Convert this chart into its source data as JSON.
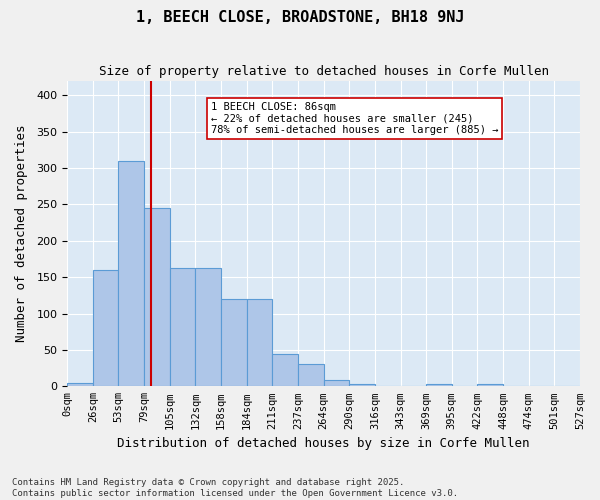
{
  "title": "1, BEECH CLOSE, BROADSTONE, BH18 9NJ",
  "subtitle": "Size of property relative to detached houses in Corfe Mullen",
  "xlabel": "Distribution of detached houses by size in Corfe Mullen",
  "ylabel": "Number of detached properties",
  "bin_labels": [
    "0sqm",
    "26sqm",
    "53sqm",
    "79sqm",
    "105sqm",
    "132sqm",
    "158sqm",
    "184sqm",
    "211sqm",
    "237sqm",
    "264sqm",
    "290sqm",
    "316sqm",
    "343sqm",
    "369sqm",
    "395sqm",
    "422sqm",
    "448sqm",
    "474sqm",
    "501sqm",
    "527sqm"
  ],
  "bar_values": [
    5,
    160,
    310,
    245,
    163,
    163,
    120,
    120,
    45,
    30,
    8,
    3,
    0,
    0,
    3,
    0,
    3,
    0,
    0,
    0
  ],
  "bar_color": "#aec6e8",
  "bar_edge_color": "#5b9bd5",
  "background_color": "#dce9f5",
  "grid_color": "#ffffff",
  "property_line_color": "#cc0000",
  "annotation_text": "1 BEECH CLOSE: 86sqm\n← 22% of detached houses are smaller (245)\n78% of semi-detached houses are larger (885) →",
  "annotation_box_color": "#ffffff",
  "annotation_box_edge": "#cc0000",
  "footnote": "Contains HM Land Registry data © Crown copyright and database right 2025.\nContains public sector information licensed under the Open Government Licence v3.0.",
  "ylim": [
    0,
    420
  ],
  "yticks": [
    0,
    50,
    100,
    150,
    200,
    250,
    300,
    350,
    400
  ],
  "figsize": [
    6.0,
    5.0
  ],
  "dpi": 100
}
